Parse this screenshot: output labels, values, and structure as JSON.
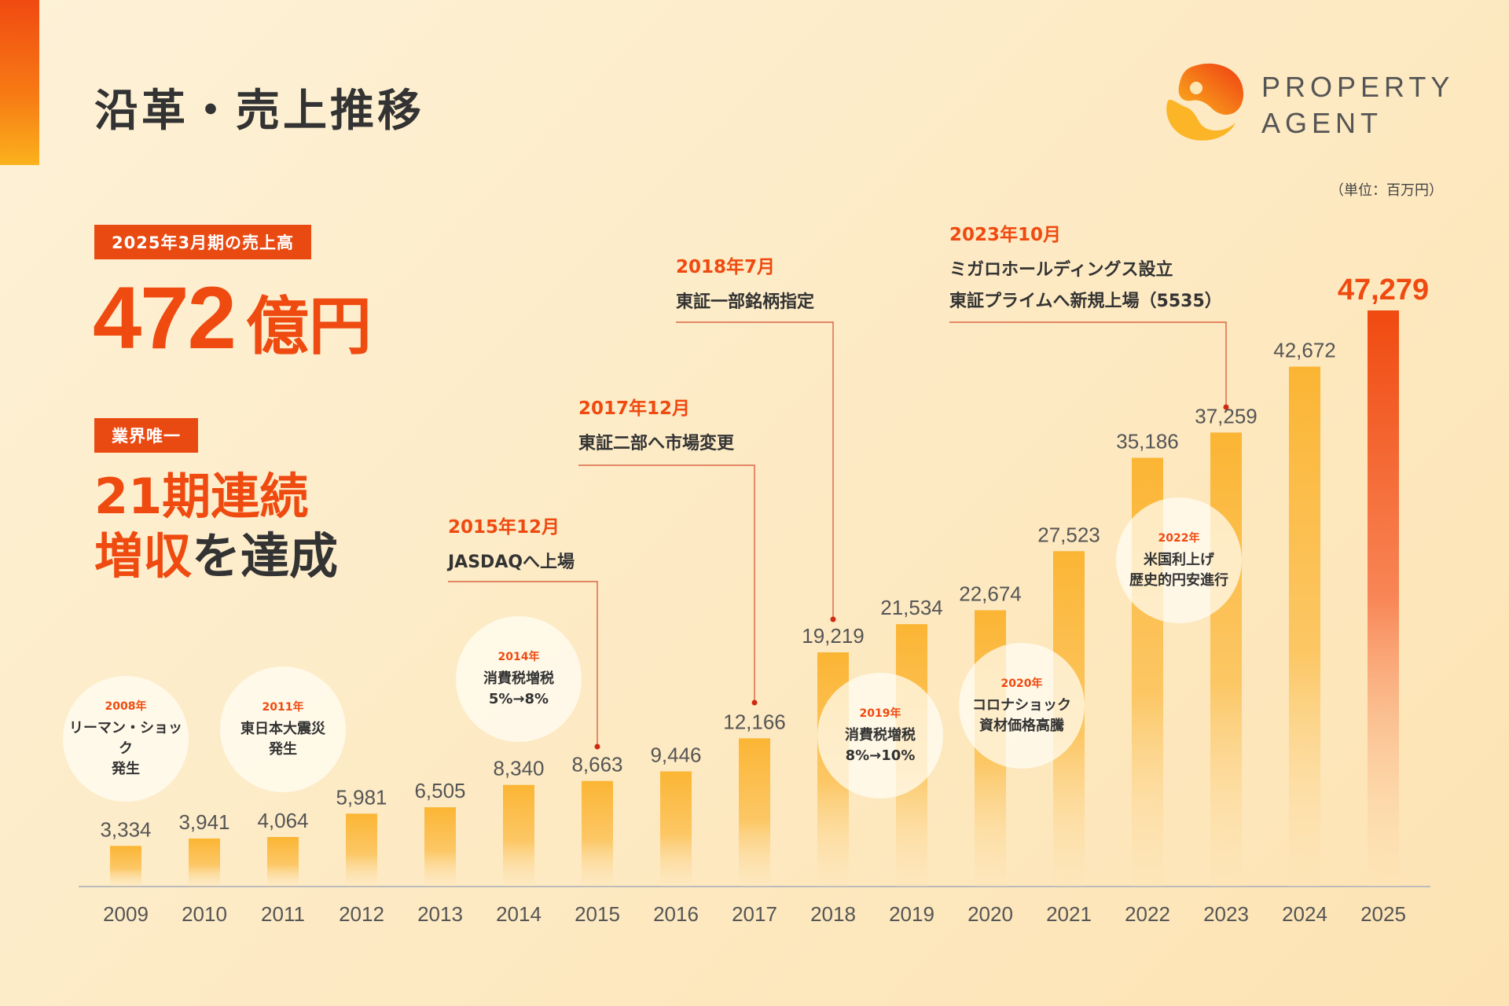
{
  "header": {
    "title": "沿革・売上推移",
    "logo_line1": "PROPERTY",
    "logo_line2": "AGENT",
    "unit_note": "（単位：百万円）"
  },
  "summary": {
    "tag1": "2025年3月期の売上高",
    "value": "472",
    "value_unit": "億円",
    "tag2": "業界唯一",
    "headline_line1": "21期連続",
    "headline_line2_orange": "増収",
    "headline_line2_dark": "を達成"
  },
  "milestones": [
    {
      "date": "2015年12月",
      "desc": [
        "JASDAQへ上場"
      ]
    },
    {
      "date": "2017年12月",
      "desc": [
        "東証二部へ市場変更"
      ]
    },
    {
      "date": "2018年7月",
      "desc": [
        "東証一部銘柄指定"
      ]
    },
    {
      "date": "2023年10月",
      "desc": [
        "ミガロホールディングス設立",
        "東証プライムへ新規上場（5535）"
      ]
    }
  ],
  "events": [
    {
      "year": "2008年",
      "lines": [
        "リーマン・ショック",
        "発生"
      ]
    },
    {
      "year": "2011年",
      "lines": [
        "東日本大震災",
        "発生"
      ]
    },
    {
      "year": "2014年",
      "lines": [
        "消費税増税",
        "5%→8%"
      ]
    },
    {
      "year": "2019年",
      "lines": [
        "消費税増税",
        "8%→10%"
      ]
    },
    {
      "year": "2020年",
      "lines": [
        "コロナショック",
        "資材価格高騰"
      ]
    },
    {
      "year": "2022年",
      "lines": [
        "米国利上げ",
        "歴史的円安進行"
      ]
    }
  ],
  "colors": {
    "accent": "#ef4a10",
    "bar_top": "#fbb534",
    "bar_highlight_top": "#f04a10",
    "text_dark": "#333333",
    "axis": "#bbbbbb"
  },
  "chart_data": {
    "type": "bar",
    "title": "売上推移",
    "ylabel": "百万円",
    "categories": [
      "2009",
      "2010",
      "2011",
      "2012",
      "2013",
      "2014",
      "2015",
      "2016",
      "2017",
      "2018",
      "2019",
      "2020",
      "2021",
      "2022",
      "2023",
      "2024",
      "2025"
    ],
    "values": [
      3334,
      3941,
      4064,
      5981,
      6505,
      8340,
      8663,
      9446,
      12166,
      19219,
      21534,
      22674,
      27523,
      35186,
      37259,
      42672,
      47279
    ],
    "value_labels": [
      "3,334",
      "3,941",
      "4,064",
      "5,981",
      "6,505",
      "8,340",
      "8,663",
      "9,446",
      "12,166",
      "19,219",
      "21,534",
      "22,674",
      "27,523",
      "35,186",
      "37,259",
      "42,672",
      "47,279"
    ],
    "highlight_index": 16,
    "ylim": [
      0,
      47279
    ]
  }
}
